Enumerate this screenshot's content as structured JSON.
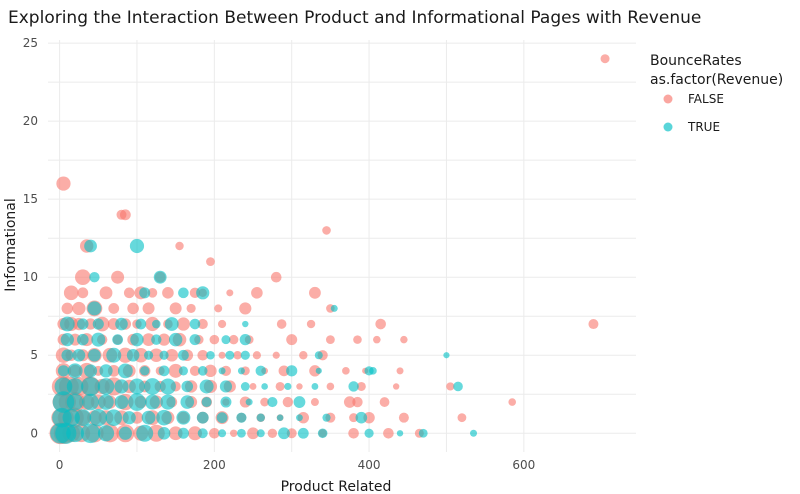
{
  "chart_data": {
    "type": "scatter",
    "title": "Exploring the Interaction Between Product and Informational Pages with Revenue",
    "xlabel": "Product Related",
    "ylabel": "Informational",
    "xlim": [
      -15,
      745
    ],
    "ylim": [
      -1.2,
      25.2
    ],
    "x_ticks": [
      0,
      200,
      400,
      600
    ],
    "y_ticks": [
      0,
      5,
      10,
      15,
      20,
      25
    ],
    "grid": true,
    "legend": {
      "position": "right",
      "title_line1": "BounceRates",
      "title_line2": "as.factor(Revenue)"
    },
    "colors": {
      "FALSE": "#F8766D",
      "TRUE": "#00BFC4"
    },
    "series": [
      {
        "name": "FALSE",
        "points": [
          [
            705,
            24
          ],
          [
            5,
            16
          ],
          [
            80,
            14
          ],
          [
            85,
            14
          ],
          [
            345,
            13
          ],
          [
            35,
            12
          ],
          [
            155,
            12
          ],
          [
            30,
            10
          ],
          [
            75,
            10
          ],
          [
            130,
            10
          ],
          [
            195,
            11
          ],
          [
            280,
            10
          ],
          [
            15,
            9
          ],
          [
            30,
            9
          ],
          [
            60,
            9
          ],
          [
            90,
            9
          ],
          [
            105,
            9
          ],
          [
            120,
            9
          ],
          [
            140,
            9
          ],
          [
            175,
            9
          ],
          [
            185,
            9
          ],
          [
            220,
            9
          ],
          [
            255,
            9
          ],
          [
            330,
            9
          ],
          [
            10,
            8
          ],
          [
            25,
            8
          ],
          [
            45,
            8
          ],
          [
            70,
            8
          ],
          [
            95,
            8
          ],
          [
            115,
            8
          ],
          [
            150,
            8
          ],
          [
            170,
            8
          ],
          [
            205,
            8
          ],
          [
            240,
            8
          ],
          [
            350,
            8
          ],
          [
            5,
            7
          ],
          [
            15,
            7
          ],
          [
            25,
            7
          ],
          [
            40,
            7
          ],
          [
            55,
            7
          ],
          [
            70,
            7
          ],
          [
            85,
            7
          ],
          [
            100,
            7
          ],
          [
            120,
            7
          ],
          [
            140,
            7
          ],
          [
            160,
            7
          ],
          [
            185,
            7
          ],
          [
            210,
            7
          ],
          [
            287,
            7
          ],
          [
            325,
            7
          ],
          [
            415,
            7
          ],
          [
            690,
            7
          ],
          [
            5,
            6
          ],
          [
            20,
            6
          ],
          [
            35,
            6
          ],
          [
            55,
            6
          ],
          [
            75,
            6
          ],
          [
            95,
            6
          ],
          [
            115,
            6
          ],
          [
            135,
            6
          ],
          [
            155,
            6
          ],
          [
            180,
            6
          ],
          [
            200,
            6
          ],
          [
            225,
            6
          ],
          [
            245,
            6
          ],
          [
            300,
            6
          ],
          [
            350,
            6
          ],
          [
            385,
            6
          ],
          [
            410,
            6
          ],
          [
            445,
            6
          ],
          [
            5,
            5
          ],
          [
            15,
            5
          ],
          [
            30,
            5
          ],
          [
            45,
            5
          ],
          [
            65,
            5
          ],
          [
            85,
            5
          ],
          [
            105,
            5
          ],
          [
            125,
            5
          ],
          [
            145,
            5
          ],
          [
            165,
            5
          ],
          [
            185,
            5
          ],
          [
            210,
            5
          ],
          [
            230,
            5
          ],
          [
            255,
            5
          ],
          [
            280,
            5
          ],
          [
            315,
            5
          ],
          [
            340,
            5
          ],
          [
            5,
            4
          ],
          [
            20,
            4
          ],
          [
            35,
            4
          ],
          [
            50,
            4
          ],
          [
            70,
            4
          ],
          [
            90,
            4
          ],
          [
            110,
            4
          ],
          [
            130,
            4
          ],
          [
            150,
            4
          ],
          [
            175,
            4
          ],
          [
            195,
            4
          ],
          [
            215,
            4
          ],
          [
            240,
            4
          ],
          [
            265,
            4
          ],
          [
            290,
            4
          ],
          [
            330,
            4
          ],
          [
            370,
            4
          ],
          [
            395,
            4
          ],
          [
            440,
            4
          ],
          [
            3,
            3
          ],
          [
            12,
            3
          ],
          [
            25,
            3
          ],
          [
            40,
            3
          ],
          [
            55,
            3
          ],
          [
            70,
            3
          ],
          [
            90,
            3
          ],
          [
            110,
            3
          ],
          [
            130,
            3
          ],
          [
            150,
            3
          ],
          [
            170,
            3
          ],
          [
            195,
            3
          ],
          [
            220,
            3
          ],
          [
            250,
            3
          ],
          [
            285,
            3
          ],
          [
            310,
            3
          ],
          [
            350,
            3
          ],
          [
            390,
            3
          ],
          [
            435,
            3
          ],
          [
            505,
            3
          ],
          [
            2,
            2
          ],
          [
            10,
            2
          ],
          [
            20,
            2
          ],
          [
            35,
            2
          ],
          [
            50,
            2
          ],
          [
            65,
            2
          ],
          [
            85,
            2
          ],
          [
            105,
            2
          ],
          [
            125,
            2
          ],
          [
            145,
            2
          ],
          [
            170,
            2
          ],
          [
            190,
            2
          ],
          [
            215,
            2
          ],
          [
            240,
            2
          ],
          [
            265,
            2
          ],
          [
            295,
            2
          ],
          [
            330,
            2
          ],
          [
            375,
            2
          ],
          [
            385,
            2
          ],
          [
            420,
            2
          ],
          [
            585,
            2
          ],
          [
            1,
            1
          ],
          [
            8,
            1
          ],
          [
            18,
            1
          ],
          [
            30,
            1
          ],
          [
            45,
            1
          ],
          [
            60,
            1
          ],
          [
            80,
            1
          ],
          [
            100,
            1
          ],
          [
            120,
            1
          ],
          [
            140,
            1
          ],
          [
            160,
            1
          ],
          [
            185,
            1
          ],
          [
            210,
            1
          ],
          [
            235,
            1
          ],
          [
            260,
            1
          ],
          [
            285,
            1
          ],
          [
            315,
            1
          ],
          [
            350,
            1
          ],
          [
            380,
            1
          ],
          [
            400,
            1
          ],
          [
            445,
            1
          ],
          [
            520,
            1
          ],
          [
            1,
            0
          ],
          [
            6,
            0
          ],
          [
            15,
            0
          ],
          [
            28,
            0
          ],
          [
            45,
            0
          ],
          [
            65,
            0
          ],
          [
            85,
            0
          ],
          [
            105,
            0
          ],
          [
            125,
            0
          ],
          [
            150,
            0
          ],
          [
            175,
            0
          ],
          [
            200,
            0
          ],
          [
            225,
            0
          ],
          [
            250,
            0
          ],
          [
            275,
            0
          ],
          [
            300,
            0
          ],
          [
            340,
            0
          ],
          [
            380,
            0
          ],
          [
            425,
            0
          ],
          [
            465,
            0
          ]
        ]
      },
      {
        "name": "TRUE",
        "points": [
          [
            40,
            12
          ],
          [
            100,
            12
          ],
          [
            130,
            10
          ],
          [
            45,
            10
          ],
          [
            110,
            9
          ],
          [
            160,
            9
          ],
          [
            185,
            9
          ],
          [
            45,
            8
          ],
          [
            355,
            8
          ],
          [
            10,
            7
          ],
          [
            30,
            7
          ],
          [
            50,
            7
          ],
          [
            80,
            7
          ],
          [
            105,
            7
          ],
          [
            125,
            7
          ],
          [
            145,
            7
          ],
          [
            175,
            7
          ],
          [
            240,
            7
          ],
          [
            10,
            6
          ],
          [
            30,
            6
          ],
          [
            50,
            6
          ],
          [
            75,
            6
          ],
          [
            100,
            6
          ],
          [
            125,
            6
          ],
          [
            150,
            6
          ],
          [
            175,
            6
          ],
          [
            215,
            6
          ],
          [
            240,
            6
          ],
          [
            10,
            5
          ],
          [
            25,
            5
          ],
          [
            45,
            5
          ],
          [
            70,
            5
          ],
          [
            95,
            5
          ],
          [
            115,
            5
          ],
          [
            135,
            5
          ],
          [
            160,
            5
          ],
          [
            195,
            5
          ],
          [
            220,
            5
          ],
          [
            240,
            5
          ],
          [
            335,
            5
          ],
          [
            500,
            5
          ],
          [
            5,
            4
          ],
          [
            20,
            4
          ],
          [
            40,
            4
          ],
          [
            60,
            4
          ],
          [
            85,
            4
          ],
          [
            110,
            4
          ],
          [
            135,
            4
          ],
          [
            160,
            4
          ],
          [
            185,
            4
          ],
          [
            210,
            4
          ],
          [
            235,
            4
          ],
          [
            260,
            4
          ],
          [
            300,
            4
          ],
          [
            335,
            4
          ],
          [
            400,
            4
          ],
          [
            405,
            4
          ],
          [
            5,
            3
          ],
          [
            20,
            3
          ],
          [
            40,
            3
          ],
          [
            60,
            3
          ],
          [
            80,
            3
          ],
          [
            100,
            3
          ],
          [
            120,
            3
          ],
          [
            140,
            3
          ],
          [
            165,
            3
          ],
          [
            190,
            3
          ],
          [
            215,
            3
          ],
          [
            240,
            3
          ],
          [
            265,
            3
          ],
          [
            295,
            3
          ],
          [
            330,
            3
          ],
          [
            380,
            3
          ],
          [
            515,
            3
          ],
          [
            5,
            2
          ],
          [
            20,
            2
          ],
          [
            40,
            2
          ],
          [
            60,
            2
          ],
          [
            80,
            2
          ],
          [
            100,
            2
          ],
          [
            120,
            2
          ],
          [
            140,
            2
          ],
          [
            165,
            2
          ],
          [
            190,
            2
          ],
          [
            215,
            2
          ],
          [
            245,
            2
          ],
          [
            275,
            2
          ],
          [
            310,
            2
          ],
          [
            3,
            1
          ],
          [
            15,
            1
          ],
          [
            30,
            1
          ],
          [
            50,
            1
          ],
          [
            70,
            1
          ],
          [
            90,
            1
          ],
          [
            115,
            1
          ],
          [
            135,
            1
          ],
          [
            160,
            1
          ],
          [
            185,
            1
          ],
          [
            210,
            1
          ],
          [
            235,
            1
          ],
          [
            260,
            1
          ],
          [
            285,
            1
          ],
          [
            310,
            1
          ],
          [
            345,
            1
          ],
          [
            390,
            1
          ],
          [
            1,
            0
          ],
          [
            8,
            0
          ],
          [
            20,
            0
          ],
          [
            40,
            0
          ],
          [
            60,
            0
          ],
          [
            85,
            0
          ],
          [
            110,
            0
          ],
          [
            135,
            0
          ],
          [
            160,
            0
          ],
          [
            185,
            0
          ],
          [
            210,
            0
          ],
          [
            235,
            0
          ],
          [
            260,
            0
          ],
          [
            290,
            0
          ],
          [
            315,
            0
          ],
          [
            340,
            0
          ],
          [
            400,
            0
          ],
          [
            440,
            0
          ],
          [
            470,
            0
          ],
          [
            535,
            0
          ]
        ]
      }
    ]
  }
}
